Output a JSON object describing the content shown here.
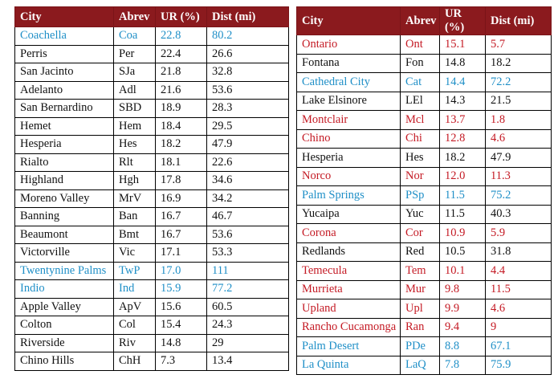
{
  "headers": [
    "City",
    "Abrev",
    "UR (%)",
    "Dist (mi)"
  ],
  "colors": {
    "header_bg": "#8b1a1e",
    "blue": "#1f8fc7",
    "red": "#c41a24",
    "black": "#111111"
  },
  "left_table": [
    {
      "city": "Coachella",
      "abrev": "Coa",
      "ur": "22.8",
      "dist": "80.2",
      "color": "blue"
    },
    {
      "city": "Perris",
      "abrev": "Per",
      "ur": "22.4",
      "dist": "26.6",
      "color": "black"
    },
    {
      "city": "San Jacinto",
      "abrev": "SJa",
      "ur": "21.8",
      "dist": "32.8",
      "color": "black"
    },
    {
      "city": "Adelanto",
      "abrev": "Adl",
      "ur": "21.6",
      "dist": "53.6",
      "color": "black"
    },
    {
      "city": "San Bernardino",
      "abrev": "SBD",
      "ur": "18.9",
      "dist": "28.3",
      "color": "black"
    },
    {
      "city": "Hemet",
      "abrev": "Hem",
      "ur": "18.4",
      "dist": "29.5",
      "color": "black"
    },
    {
      "city": "Hesperia",
      "abrev": "Hes",
      "ur": "18.2",
      "dist": "47.9",
      "color": "black"
    },
    {
      "city": "Rialto",
      "abrev": "Rlt",
      "ur": "18.1",
      "dist": "22.6",
      "color": "black"
    },
    {
      "city": "Highland",
      "abrev": "Hgh",
      "ur": "17.8",
      "dist": "34.6",
      "color": "black"
    },
    {
      "city": "Moreno Valley",
      "abrev": "MrV",
      "ur": "16.9",
      "dist": "34.2",
      "color": "black"
    },
    {
      "city": "Banning",
      "abrev": "Ban",
      "ur": "16.7",
      "dist": "46.7",
      "color": "black"
    },
    {
      "city": "Beaumont",
      "abrev": "Bmt",
      "ur": "16.7",
      "dist": "53.6",
      "color": "black"
    },
    {
      "city": "Victorville",
      "abrev": "Vic",
      "ur": "17.1",
      "dist": "53.3",
      "color": "black"
    },
    {
      "city": "Twentynine Palms",
      "abrev": "TwP",
      "ur": "17.0",
      "dist": "111",
      "color": "blue"
    },
    {
      "city": "Indio",
      "abrev": "Ind",
      "ur": "15.9",
      "dist": "77.2",
      "color": "blue"
    },
    {
      "city": "Apple Valley",
      "abrev": "ApV",
      "ur": "15.6",
      "dist": "60.5",
      "color": "black"
    },
    {
      "city": "Colton",
      "abrev": "Col",
      "ur": "15.4",
      "dist": "24.3",
      "color": "black"
    },
    {
      "city": "Riverside",
      "abrev": "Riv",
      "ur": "14.8",
      "dist": "29",
      "color": "black"
    },
    {
      "city": "Chino Hills",
      "abrev": "ChH",
      "ur": "7.3",
      "dist": "13.4",
      "color": "black"
    }
  ],
  "right_table": [
    {
      "city": "Ontario",
      "abrev": "Ont",
      "ur": "15.1",
      "dist": "5.7",
      "color": "red"
    },
    {
      "city": "Fontana",
      "abrev": "Fon",
      "ur": "14.8",
      "dist": "18.2",
      "color": "black"
    },
    {
      "city": "Cathedral City",
      "abrev": "Cat",
      "ur": "14.4",
      "dist": "72.2",
      "color": "blue"
    },
    {
      "city": "Lake Elsinore",
      "abrev": "LEl",
      "ur": "14.3",
      "dist": "21.5",
      "color": "black"
    },
    {
      "city": "Montclair",
      "abrev": "Mcl",
      "ur": "13.7",
      "dist": "1.8",
      "color": "red"
    },
    {
      "city": "Chino",
      "abrev": "Chi",
      "ur": "12.8",
      "dist": "4.6",
      "color": "red"
    },
    {
      "city": "Hesperia",
      "abrev": "Hes",
      "ur": "18.2",
      "dist": "47.9",
      "color": "black"
    },
    {
      "city": "Norco",
      "abrev": "Nor",
      "ur": "12.0",
      "dist": "11.3",
      "color": "red"
    },
    {
      "city": "Palm Springs",
      "abrev": "PSp",
      "ur": "11.5",
      "dist": "75.2",
      "color": "blue"
    },
    {
      "city": "Yucaipa",
      "abrev": "Yuc",
      "ur": "11.5",
      "dist": "40.3",
      "color": "black"
    },
    {
      "city": "Corona",
      "abrev": "Cor",
      "ur": "10.9",
      "dist": "5.9",
      "color": "red"
    },
    {
      "city": "Redlands",
      "abrev": "Red",
      "ur": "10.5",
      "dist": "31.8",
      "color": "black"
    },
    {
      "city": "Temecula",
      "abrev": "Tem",
      "ur": "10.1",
      "dist": "4.4",
      "color": "red"
    },
    {
      "city": "Murrieta",
      "abrev": "Mur",
      "ur": "9.8",
      "dist": "11.5",
      "color": "red"
    },
    {
      "city": "Upland",
      "abrev": "Upl",
      "ur": "9.9",
      "dist": "4.6",
      "color": "red"
    },
    {
      "city": "Rancho Cucamonga",
      "abrev": "Ran",
      "ur": "9.4",
      "dist": "9",
      "color": "red"
    },
    {
      "city": "Palm Desert",
      "abrev": "PDe",
      "ur": "8.8",
      "dist": "67.1",
      "color": "blue"
    },
    {
      "city": "La Quinta",
      "abrev": "LaQ",
      "ur": "7.8",
      "dist": "75.9",
      "color": "blue"
    }
  ]
}
